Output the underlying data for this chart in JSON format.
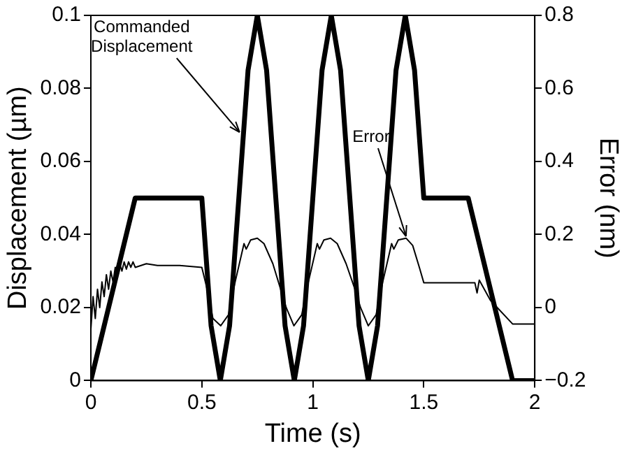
{
  "chart_data": {
    "type": "line",
    "xlabel": "Time (s)",
    "ylabel": "Displacement (µm)",
    "y2label": "Error (nm)",
    "xlim": [
      0,
      2
    ],
    "xticks": [
      0,
      0.5,
      1,
      1.5,
      2
    ],
    "ylim": [
      0,
      0.1
    ],
    "yticks": [
      0,
      0.02,
      0.04,
      0.06,
      0.08,
      0.1
    ],
    "y2lim": [
      -0.2,
      0.8
    ],
    "y2ticks": [
      {
        "value": -0.2,
        "label": "−0.2"
      },
      0,
      0.2,
      0.4,
      0.6,
      0.8
    ],
    "grid": false,
    "legend": false,
    "marker": "none",
    "line_style": "solid",
    "series": [
      {
        "color": "#000000",
        "x": [
          0,
          0.2,
          0.5,
          0.5417,
          0.5833,
          0.625,
          0.6667,
          0.7083,
          0.75,
          0.7917,
          0.8333,
          0.875,
          0.9167,
          0.9583,
          1.0,
          1.0417,
          1.0833,
          1.125,
          1.1667,
          1.2083,
          1.25,
          1.2917,
          1.3333,
          1.375,
          1.4167,
          1.4583,
          1.5,
          1.7,
          1.9,
          2
        ],
        "values": [
          0,
          0.05,
          0.05,
          0.015,
          0,
          0.015,
          0.05,
          0.085,
          0.1,
          0.085,
          0.05,
          0.015,
          0,
          0.015,
          0.05,
          0.085,
          0.1,
          0.085,
          0.05,
          0.015,
          0,
          0.015,
          0.05,
          0.085,
          0.1,
          0.085,
          0.05,
          0.05,
          0,
          0
        ]
      },
      {
        "color": "#000000",
        "axis": "y2",
        "x": [
          0,
          0.01,
          0.02,
          0.03,
          0.04,
          0.05,
          0.06,
          0.07,
          0.08,
          0.09,
          0.1,
          0.11,
          0.12,
          0.13,
          0.14,
          0.15,
          0.16,
          0.17,
          0.18,
          0.19,
          0.2,
          0.25,
          0.3,
          0.4,
          0.5,
          0.52,
          0.55,
          0.585,
          0.62,
          0.65,
          0.69,
          0.7,
          0.72,
          0.75,
          0.78,
          0.82,
          0.855,
          0.88,
          0.915,
          0.95,
          0.98,
          1.02,
          1.03,
          1.05,
          1.08,
          1.11,
          1.15,
          1.19,
          1.215,
          1.25,
          1.285,
          1.315,
          1.355,
          1.365,
          1.385,
          1.42,
          1.45,
          1.48,
          1.5,
          1.6,
          1.73,
          1.74,
          1.75,
          1.8,
          1.9,
          2
        ],
        "values": [
          -0.06,
          0.03,
          -0.03,
          0.05,
          0,
          0.07,
          0.03,
          0.09,
          0.05,
          0.1,
          0.07,
          0.11,
          0.09,
          0.12,
          0.1,
          0.125,
          0.105,
          0.125,
          0.11,
          0.125,
          0.11,
          0.12,
          0.115,
          0.115,
          0.11,
          0.06,
          -0.03,
          -0.05,
          -0.02,
          0.07,
          0.175,
          0.16,
          0.185,
          0.19,
          0.175,
          0.12,
          0.05,
          0,
          -0.05,
          -0.02,
          0.07,
          0.175,
          0.16,
          0.185,
          0.19,
          0.175,
          0.12,
          0.05,
          0,
          -0.05,
          -0.02,
          0.07,
          0.175,
          0.16,
          0.185,
          0.19,
          0.17,
          0.11,
          0.068,
          0.068,
          0.068,
          0.04,
          0.075,
          0.02,
          -0.045,
          -0.045
        ]
      }
    ],
    "annotations": [
      {
        "text": "Commanded Displacement",
        "x": 0.67,
        "y": 0.068
      },
      {
        "text": "Error",
        "x": 1.42,
        "y": 0.0395
      }
    ]
  }
}
